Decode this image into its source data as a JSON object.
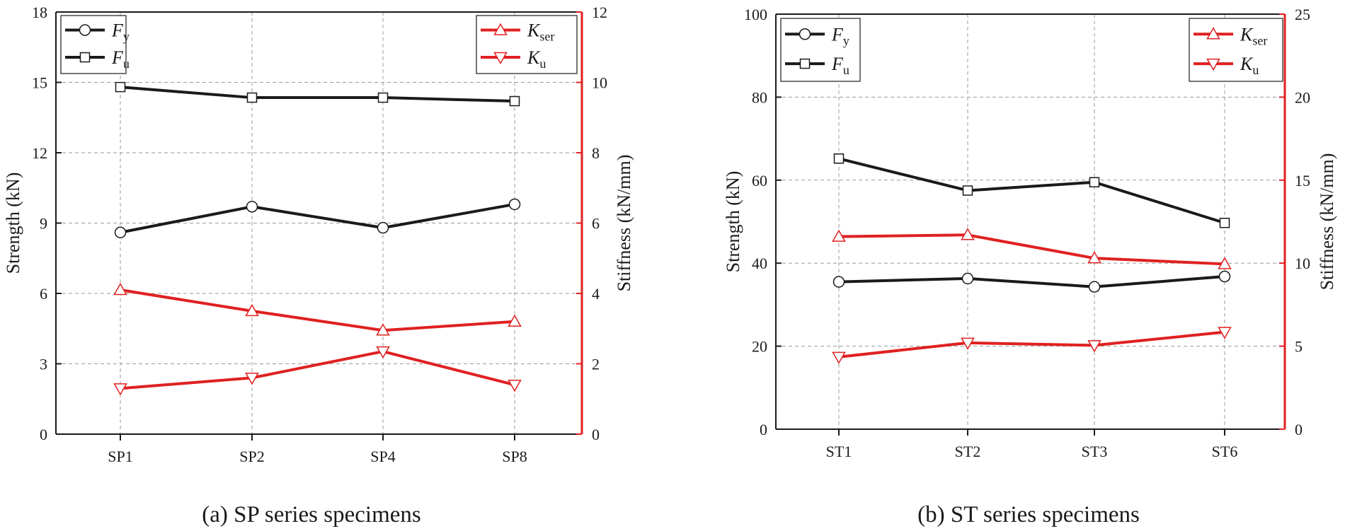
{
  "colors": {
    "black_series": "#1a1a1a",
    "red_series": "#e02020",
    "grid": "#9a9a9a"
  },
  "chart_data": [
    {
      "type": "line",
      "caption": "(a) SP series specimens",
      "categories": [
        "SP1",
        "SP2",
        "SP4",
        "SP8"
      ],
      "ylabel": "Strength (kN)",
      "ylim": [
        0,
        18
      ],
      "yticks": [
        "0",
        "3",
        "6",
        "9",
        "12",
        "15",
        "18"
      ],
      "y2label": "Stiffness (kN/mm)",
      "y2lim": [
        0,
        12
      ],
      "y2ticks": [
        "0",
        "2",
        "4",
        "6",
        "8",
        "10",
        "12"
      ],
      "grid": true,
      "series": [
        {
          "name": "F",
          "sub": "y",
          "axis": "left",
          "marker": "circle",
          "color": "#1a1a1a",
          "values": [
            8.6,
            9.7,
            8.8,
            9.8
          ]
        },
        {
          "name": "F",
          "sub": "u",
          "axis": "left",
          "marker": "square",
          "color": "#1a1a1a",
          "values": [
            14.8,
            14.35,
            14.35,
            14.2
          ]
        },
        {
          "name": "K",
          "sub": "ser",
          "axis": "right",
          "marker": "triangle-up",
          "color": "#e02020",
          "values": [
            4.1,
            3.5,
            2.95,
            3.2
          ]
        },
        {
          "name": "K",
          "sub": "u",
          "axis": "right",
          "marker": "triangle-down",
          "color": "#e02020",
          "values": [
            1.3,
            1.6,
            2.35,
            1.4
          ]
        }
      ]
    },
    {
      "type": "line",
      "caption": "(b) ST series specimens",
      "categories": [
        "ST1",
        "ST2",
        "ST3",
        "ST6"
      ],
      "ylabel": "Strength (kN)",
      "ylim": [
        0,
        100
      ],
      "yticks": [
        "0",
        "20",
        "40",
        "60",
        "80",
        "100"
      ],
      "y2label": "Stiffness (kN/mm)",
      "y2lim": [
        0,
        25
      ],
      "y2ticks": [
        "0",
        "5",
        "10",
        "15",
        "20",
        "25"
      ],
      "grid": true,
      "series": [
        {
          "name": "F",
          "sub": "y",
          "axis": "left",
          "marker": "circle",
          "color": "#1a1a1a",
          "values": [
            35.5,
            36.3,
            34.3,
            36.8
          ]
        },
        {
          "name": "F",
          "sub": "u",
          "axis": "left",
          "marker": "square",
          "color": "#1a1a1a",
          "values": [
            65.2,
            57.5,
            59.5,
            49.7
          ]
        },
        {
          "name": "K",
          "sub": "ser",
          "axis": "right",
          "marker": "triangle-up",
          "color": "#e02020",
          "values": [
            11.6,
            11.7,
            10.3,
            9.95
          ]
        },
        {
          "name": "K",
          "sub": "u",
          "axis": "right",
          "marker": "triangle-down",
          "color": "#e02020",
          "values": [
            4.35,
            5.2,
            5.05,
            5.85
          ]
        }
      ]
    }
  ]
}
